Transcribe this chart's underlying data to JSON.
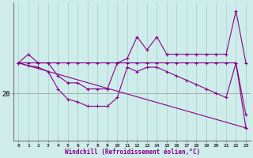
{
  "xlabel": "Windchill (Refroidissement éolien,°C)",
  "bg_color": "#ceecea",
  "line_color": "#880088",
  "grid_color": "#b0d8d5",
  "ytick_labels": [
    "20"
  ],
  "ytick_values": [
    20
  ],
  "xlim": [
    -0.5,
    23.5
  ],
  "ylim": [
    14.5,
    30.5
  ],
  "series": [
    {
      "x": [
        0,
        1,
        2,
        3,
        4,
        5,
        6,
        7,
        8,
        9,
        10,
        11,
        12,
        13,
        14,
        15,
        16,
        17,
        18,
        19,
        20,
        21,
        22,
        23
      ],
      "y": [
        23.5,
        24.5,
        23.5,
        23.5,
        22.0,
        21.2,
        21.2,
        20.5,
        20.5,
        20.5,
        23.5,
        24.0,
        26.5,
        25.0,
        26.5,
        24.5,
        24.5,
        24.5,
        24.5,
        24.5,
        24.5,
        24.5,
        29.5,
        23.5
      ]
    },
    {
      "x": [
        0,
        1,
        2,
        3,
        4,
        5,
        6,
        7,
        8,
        9,
        10,
        11,
        12,
        13,
        14,
        15,
        16,
        17,
        18,
        19,
        20,
        21,
        22,
        23
      ],
      "y": [
        23.5,
        23.5,
        23.5,
        23.5,
        23.5,
        23.5,
        23.5,
        23.5,
        23.5,
        23.5,
        23.5,
        23.5,
        23.5,
        23.5,
        23.5,
        23.5,
        23.5,
        23.5,
        23.5,
        23.5,
        23.5,
        23.5,
        23.5,
        17.5
      ]
    },
    {
      "x": [
        0,
        23
      ],
      "y": [
        23.5,
        16.0
      ]
    },
    {
      "x": [
        0,
        1,
        2,
        3,
        4,
        5,
        6,
        7,
        8,
        9,
        10,
        11,
        12,
        13,
        14,
        15,
        16,
        17,
        18,
        19,
        20,
        21,
        22,
        23
      ],
      "y": [
        23.5,
        23.2,
        23.0,
        22.5,
        20.5,
        19.3,
        19.0,
        18.5,
        18.5,
        18.5,
        19.5,
        23.0,
        22.5,
        23.0,
        23.0,
        22.5,
        22.0,
        21.5,
        21.0,
        20.5,
        20.0,
        19.5,
        23.5,
        16.0
      ]
    }
  ]
}
